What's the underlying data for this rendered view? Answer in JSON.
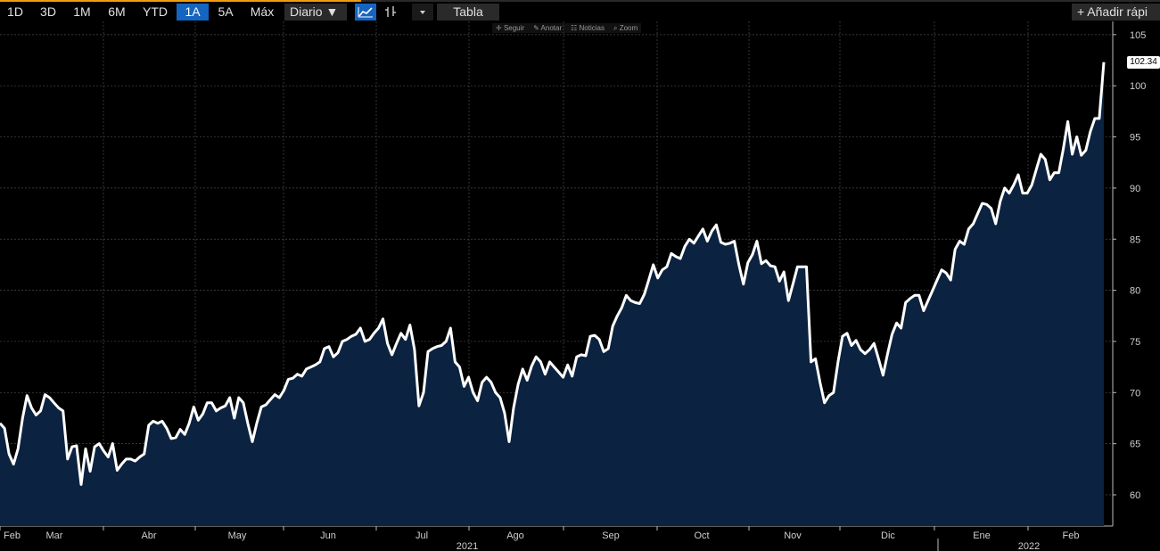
{
  "toolbar": {
    "ranges": [
      "1D",
      "3D",
      "1M",
      "6M",
      "YTD",
      "1A",
      "5A",
      "Máx"
    ],
    "active_range": "1A",
    "interval_label": "Diario ▼",
    "chart_icon": "line-chart-icon",
    "bar_icon": "bar-chart-icon",
    "more_icon": "chevron-down-icon",
    "table_label": "Tabla",
    "add_label": "+ Añadir rápi"
  },
  "mini_tools": {
    "follow": "Seguir",
    "annotate": "Anotar",
    "news": "Noticias",
    "zoom": "Zoom"
  },
  "colors": {
    "line": "#ffffff",
    "fill": "#0b2240",
    "grid": "#4a4a4a",
    "active": "#1565c0",
    "accent": "#f39c12"
  },
  "chart_data": {
    "type": "area",
    "title": "",
    "xlabel": "",
    "ylabel": "",
    "ylim": [
      57,
      106
    ],
    "yticks": [
      60,
      65,
      70,
      75,
      80,
      85,
      90,
      95,
      100,
      105
    ],
    "months": [
      "Feb",
      "Mar",
      "Abr",
      "May",
      "Jun",
      "Jul",
      "Ago",
      "Sep",
      "Oct",
      "Nov",
      "Dic",
      "Ene",
      "Feb"
    ],
    "years": [
      "2021",
      "2022"
    ],
    "grid": true,
    "last_value": "102.34",
    "series": [
      {
        "values": [
          67.0,
          66.5,
          64.0,
          63.0,
          64.5,
          67.5,
          69.7,
          68.5,
          67.8,
          68.2,
          69.8,
          69.5,
          69.0,
          68.5,
          68.2,
          63.5,
          64.7,
          64.8,
          61.0,
          64.5,
          62.3,
          64.7,
          65.0,
          64.3,
          63.7,
          65.0,
          62.4,
          63.0,
          63.5,
          63.5,
          63.3,
          63.7,
          64.0,
          66.8,
          67.2,
          67.0,
          67.2,
          66.5,
          65.5,
          65.6,
          66.4,
          65.9,
          67.0,
          68.6,
          67.3,
          67.9,
          69.0,
          69.0,
          68.2,
          68.5,
          68.7,
          69.5,
          67.5,
          69.5,
          69.0,
          67.0,
          65.2,
          67.0,
          68.6,
          68.8,
          69.3,
          69.8,
          69.5,
          70.2,
          71.3,
          71.4,
          71.8,
          71.6,
          72.3,
          72.5,
          72.7,
          73.0,
          74.3,
          74.5,
          73.5,
          73.9,
          75.0,
          75.2,
          75.5,
          75.7,
          76.3,
          75.0,
          75.2,
          75.8,
          76.3,
          77.2,
          74.8,
          73.7,
          74.8,
          75.8,
          75.2,
          76.6,
          74.2,
          68.7,
          70.0,
          74.0,
          74.3,
          74.5,
          74.6,
          75.0,
          76.3,
          73.0,
          72.5,
          70.6,
          71.5,
          70.0,
          69.2,
          71.0,
          71.5,
          71.0,
          70.0,
          69.5,
          68.0,
          65.2,
          68.5,
          70.8,
          72.3,
          71.2,
          72.6,
          73.5,
          73.0,
          71.8,
          73.0,
          72.5,
          72.0,
          71.5,
          72.7,
          71.6,
          73.5,
          73.7,
          73.6,
          75.5,
          75.6,
          75.2,
          74.0,
          74.3,
          76.5,
          77.5,
          78.3,
          79.5,
          79.0,
          78.8,
          78.7,
          79.6,
          81.0,
          82.5,
          81.2,
          82.0,
          82.3,
          83.6,
          83.3,
          83.1,
          84.3,
          85.0,
          84.6,
          85.3,
          86.0,
          84.8,
          85.8,
          86.4,
          84.7,
          84.5,
          84.6,
          84.8,
          82.5,
          80.6,
          82.7,
          83.5,
          84.8,
          82.6,
          82.9,
          82.4,
          82.3,
          80.9,
          81.8,
          79.0,
          80.6,
          82.3,
          82.3,
          82.3,
          73.0,
          73.3,
          71.0,
          69.0,
          69.7,
          70.0,
          73.0,
          75.5,
          75.8,
          74.6,
          75.1,
          74.2,
          73.8,
          74.2,
          74.8,
          73.3,
          71.7,
          73.8,
          75.7,
          76.8,
          76.3,
          78.8,
          79.2,
          79.5,
          79.5,
          78.0,
          79.0,
          80.0,
          81.0,
          82.0,
          81.7,
          81.0,
          84.0,
          84.8,
          84.5,
          86.0,
          86.5,
          87.5,
          88.5,
          88.4,
          88.0,
          86.5,
          88.7,
          90.0,
          89.5,
          90.3,
          91.3,
          89.5,
          89.5,
          90.3,
          91.8,
          93.3,
          92.8,
          90.8,
          91.5,
          91.5,
          93.8,
          96.5,
          93.3,
          95.0,
          93.2,
          93.7,
          95.5,
          96.8,
          96.8,
          102.3
        ]
      }
    ]
  }
}
